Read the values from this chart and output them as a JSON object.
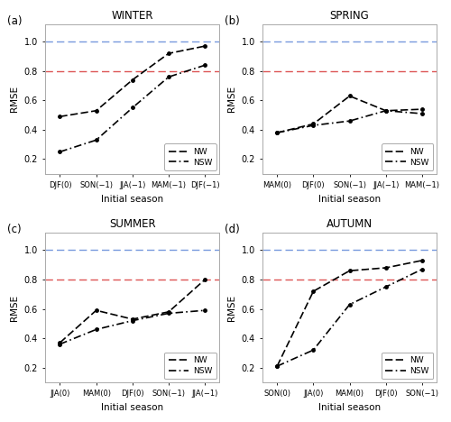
{
  "panels": [
    {
      "label": "(a)",
      "title": "WINTER",
      "xticks": [
        "DJF(0)",
        "SON(−1)",
        "JJA(−1)",
        "MAM(−1)",
        "DJF(−1)"
      ],
      "NW": [
        0.49,
        0.53,
        0.74,
        0.92,
        0.97
      ],
      "NSW": [
        0.25,
        0.33,
        0.55,
        0.76,
        0.84
      ]
    },
    {
      "label": "(b)",
      "title": "SPRING",
      "xticks": [
        "MAM(0)",
        "DJF(0)",
        "SON(−1)",
        "JJA(−1)",
        "MAM(−1)"
      ],
      "NW": [
        0.38,
        0.44,
        0.63,
        0.53,
        0.54
      ],
      "NSW": [
        0.38,
        0.43,
        0.46,
        0.53,
        0.51
      ]
    },
    {
      "label": "(c)",
      "title": "SUMMER",
      "xticks": [
        "JJA(0)",
        "MAM(0)",
        "DJF(0)",
        "SON(−1)",
        "JJA(−1)"
      ],
      "NW": [
        0.37,
        0.59,
        0.53,
        0.58,
        0.8
      ],
      "NSW": [
        0.36,
        0.46,
        0.52,
        0.57,
        0.59
      ]
    },
    {
      "label": "(d)",
      "title": "AUTUMN",
      "xticks": [
        "SON(0)",
        "JJA(0)",
        "MAM(0)",
        "DJF(0)",
        "SON(−1)"
      ],
      "NW": [
        0.21,
        0.72,
        0.86,
        0.88,
        0.93
      ],
      "NSW": [
        0.21,
        0.32,
        0.63,
        0.75,
        0.87
      ]
    }
  ],
  "ylim": [
    0.1,
    1.12
  ],
  "yticks": [
    0.2,
    0.4,
    0.6,
    0.8,
    1.0
  ],
  "blue_line": 1.0,
  "red_line": 0.8,
  "blue_color": "#7799dd",
  "red_color": "#dd5555",
  "xlabel": "Initial season",
  "ylabel": "RMSE",
  "plot_bg": "#ffffff",
  "fig_bg": "#ffffff"
}
